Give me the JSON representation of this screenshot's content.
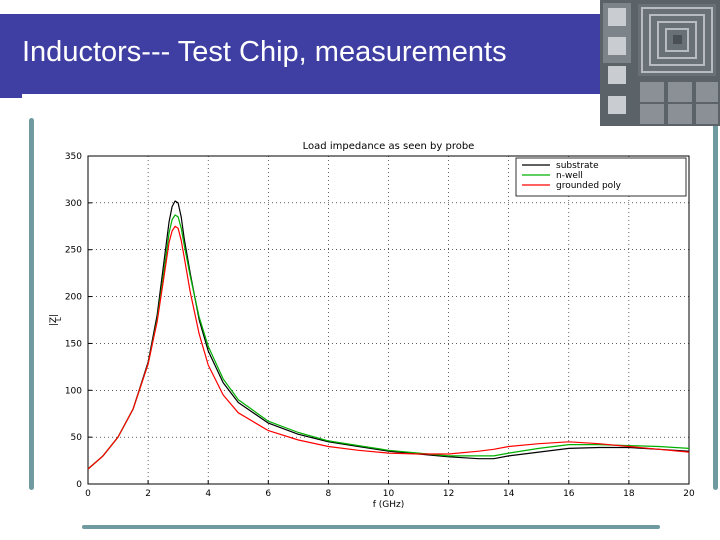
{
  "slide": {
    "title": "Inductors--- Test Chip, measurements",
    "accent_color": "#3f3fa3",
    "rule_color": "#6f9aa0"
  },
  "chip_photo": {
    "icon": "spiral-inductor-chip-photo-icon"
  },
  "chart_data": {
    "type": "line",
    "title": "Load impedance as seen by probe",
    "xlabel": "f (GHz)",
    "ylabel": "|Z|",
    "ylabel_subscript": "L",
    "xlim": [
      0,
      20
    ],
    "ylim": [
      0,
      350
    ],
    "xticks": [
      0,
      2,
      4,
      6,
      8,
      10,
      12,
      14,
      16,
      18,
      20
    ],
    "yticks": [
      0,
      50,
      100,
      150,
      200,
      250,
      300,
      350
    ],
    "grid": true,
    "legend_position": "top-right",
    "series": [
      {
        "name": "substrate",
        "color": "#000000",
        "x": [
          0,
          0.5,
          1,
          1.5,
          2,
          2.3,
          2.5,
          2.7,
          2.8,
          2.9,
          3.0,
          3.1,
          3.2,
          3.4,
          3.7,
          4,
          4.5,
          5,
          6,
          7,
          8,
          9,
          10,
          11,
          12,
          13,
          13.5,
          14,
          15,
          16,
          17,
          18,
          19,
          20
        ],
        "y": [
          16,
          30,
          50,
          80,
          130,
          180,
          230,
          280,
          296,
          302,
          300,
          285,
          262,
          225,
          175,
          142,
          108,
          87,
          65,
          53,
          45,
          40,
          35,
          32,
          29,
          27,
          27,
          30,
          34,
          38,
          39,
          39,
          37,
          35
        ]
      },
      {
        "name": "n-well",
        "color": "#00b000",
        "x": [
          0,
          0.5,
          1,
          1.5,
          2,
          2.3,
          2.5,
          2.7,
          2.8,
          2.9,
          3.0,
          3.1,
          3.2,
          3.4,
          3.7,
          4,
          4.5,
          5,
          6,
          7,
          8,
          9,
          10,
          11,
          12,
          13,
          13.5,
          14,
          15,
          16,
          17,
          18,
          19,
          20
        ],
        "y": [
          16,
          30,
          50,
          80,
          128,
          175,
          220,
          268,
          282,
          287,
          285,
          273,
          255,
          222,
          178,
          147,
          112,
          90,
          67,
          55,
          46,
          41,
          36,
          33,
          30,
          30,
          30,
          33,
          38,
          42,
          42,
          41,
          40,
          38
        ]
      },
      {
        "name": "grounded poly",
        "color": "#ff0000",
        "x": [
          0,
          0.5,
          1,
          1.5,
          2,
          2.3,
          2.5,
          2.7,
          2.8,
          2.9,
          3.0,
          3.1,
          3.2,
          3.4,
          3.7,
          4,
          4.5,
          5,
          6,
          7,
          8,
          9,
          10,
          11,
          12,
          13,
          13.5,
          14,
          15,
          16,
          17,
          18,
          19,
          20
        ],
        "y": [
          16,
          30,
          50,
          80,
          128,
          173,
          215,
          258,
          270,
          275,
          273,
          260,
          242,
          205,
          160,
          127,
          95,
          76,
          57,
          47,
          40,
          36,
          33,
          32,
          32,
          35,
          37,
          40,
          43,
          45,
          43,
          40,
          37,
          34
        ]
      }
    ]
  }
}
